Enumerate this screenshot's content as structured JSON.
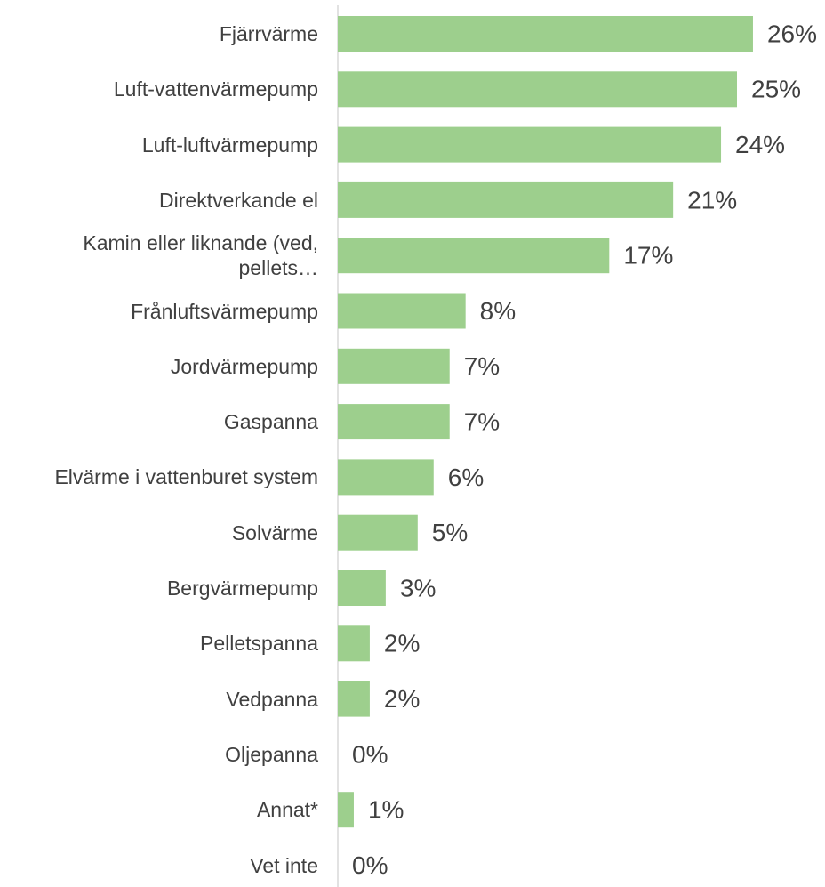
{
  "chart_data": {
    "type": "bar",
    "orientation": "horizontal",
    "categories": [
      "Fjärrvärme",
      "Luft-vattenvärmepump",
      "Luft-luftvärmepump",
      "Direktverkande el",
      "Kamin eller liknande (ved, pellets…",
      "Frånluftsvärmepump",
      "Jordvärmepump",
      "Gaspanna",
      "Elvärme i vattenburet system",
      "Solvärme",
      "Bergvärmepump",
      "Pelletspanna",
      "Vedpanna",
      "Oljepanna",
      "Annat*",
      "Vet inte"
    ],
    "values": [
      26,
      25,
      24,
      21,
      17,
      8,
      7,
      7,
      6,
      5,
      3,
      2,
      2,
      0,
      1,
      0
    ],
    "value_labels": [
      "26%",
      "25%",
      "24%",
      "21%",
      "17%",
      "8%",
      "7%",
      "7%",
      "6%",
      "5%",
      "3%",
      "2%",
      "2%",
      "0%",
      "1%",
      "0%"
    ],
    "color": "#9dcf8d",
    "xlim": [
      0,
      30
    ]
  }
}
